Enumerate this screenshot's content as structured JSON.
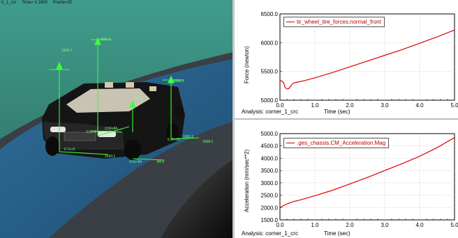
{
  "viewport": {
    "header": {
      "name": "tr_1_crc",
      "time": "Time= 3.1800",
      "frame": "Frame=35"
    },
    "annotations": [
      "1008.7",
      "1060.4",
      "1009.5",
      "3308.3",
      "1008.1",
      "3,50+84",
      "3,5e+9",
      "5,30+80",
      "6.7e+3",
      "2043.1",
      "4.5e+84",
      "84.9",
      "1000.1"
    ]
  },
  "charts": [
    {
      "legend": "tir_wheel_tire_forces.normal_front",
      "ylabel": "Force (newton)",
      "xlabel": "Time (sec)",
      "analysis_label": "Analysis:",
      "analysis_value": "corner_1_crc",
      "yticks": [
        "6500.0",
        "6000.0",
        "5500.0",
        "5000.0"
      ],
      "xticks": [
        "0.0",
        "1.0",
        "2.0",
        "3.0",
        "4.0",
        "5.0"
      ]
    },
    {
      "legend": ".ges_chassis.CM_Acceleration.Mag",
      "ylabel": "Acceleration (mm/sec**2)",
      "xlabel": "Time (sec)",
      "analysis_label": "Analysis:",
      "analysis_value": "corner_1_crc",
      "yticks": [
        "5000.0",
        "4500.0",
        "4000.0",
        "3500.0",
        "3000.0",
        "2500.0",
        "2000.0",
        "1500.0"
      ],
      "xticks": [
        "0.0",
        "1.0",
        "2.0",
        "3.0",
        "4.0",
        "5.0"
      ]
    }
  ],
  "chart_data": [
    {
      "type": "line",
      "xlim": [
        0,
        5
      ],
      "ylim": [
        5000,
        6500
      ],
      "grid": true,
      "legend_position": "top-left",
      "series": [
        {
          "name": "tir_wheel_tire_forces.normal_front",
          "color": "#e00000",
          "x": [
            0.0,
            0.05,
            0.1,
            0.15,
            0.2,
            0.25,
            0.3,
            0.35,
            0.4,
            0.5,
            0.7,
            1.0,
            1.5,
            2.0,
            2.5,
            3.0,
            3.5,
            4.0,
            4.5,
            5.0
          ],
          "y": [
            5340,
            5335,
            5310,
            5220,
            5195,
            5200,
            5240,
            5280,
            5300,
            5315,
            5340,
            5390,
            5480,
            5580,
            5680,
            5780,
            5880,
            5990,
            6100,
            6220
          ]
        }
      ]
    },
    {
      "type": "line",
      "xlim": [
        0,
        5
      ],
      "ylim": [
        1500,
        5000
      ],
      "grid": true,
      "legend_position": "top-left",
      "series": [
        {
          "name": ".ges_chassis.CM_Acceleration.Mag",
          "color": "#e00000",
          "x": [
            0.0,
            0.1,
            0.2,
            0.3,
            0.4,
            0.5,
            1.0,
            1.5,
            2.0,
            2.5,
            3.0,
            3.5,
            4.0,
            4.5,
            5.0
          ],
          "y": [
            2000,
            2080,
            2150,
            2200,
            2250,
            2280,
            2480,
            2700,
            2960,
            3220,
            3500,
            3780,
            4080,
            4430,
            4840
          ]
        }
      ]
    }
  ]
}
